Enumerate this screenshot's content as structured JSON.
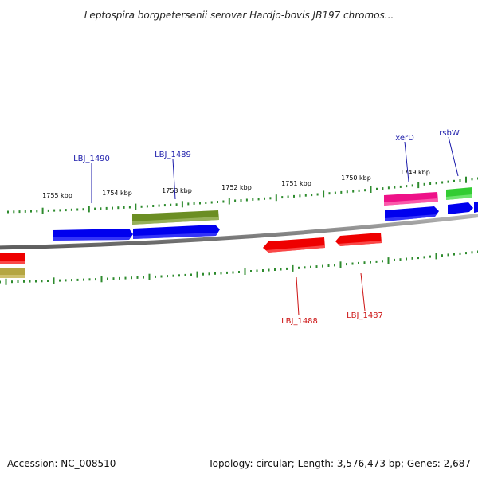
{
  "title": "Leptospira borgpetersenii serovar Hardjo-bovis JB197 chromos...",
  "footer": {
    "accession": "Accession: NC_008510",
    "topology": "Topology: circular; Length: 3,576,473 bp; Genes: 2,687"
  },
  "tick_labels": [
    "1755 kbp",
    "1754 kbp",
    "1753 kbp",
    "1752 kbp",
    "1751 kbp",
    "1750 kbp",
    "1749 kbp"
  ],
  "gene_labels": {
    "lbj_1490": "LBJ_1490",
    "lbj_1489": "LBJ_1489",
    "xerd": "xerD",
    "rsbw": "rsbW",
    "lbj_1488": "LBJ_1488",
    "lbj_1487": "LBJ_1487"
  },
  "colors": {
    "blue": "#0000ee",
    "red": "#ee0000",
    "olive": "#6b8e23",
    "magenta": "#ee1188",
    "green": "#33cc33",
    "khaki": "#b5a642",
    "backbone": "#808080",
    "tick": "#2e8b2e"
  }
}
